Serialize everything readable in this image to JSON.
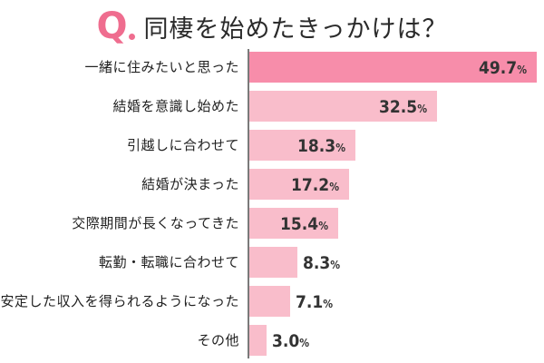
{
  "header": {
    "q_mark": "Q",
    "title": "同棲を始めたきっかけは？"
  },
  "colors": {
    "accent": "#ef6d8f",
    "bar_highlight": "#f78daa",
    "bar_default": "#f9bdcb",
    "axis": "#7a7a7a"
  },
  "chart_data": {
    "type": "bar",
    "orientation": "horizontal",
    "title": "Q. 同棲を始めたきっかけは？",
    "xlabel": "",
    "ylabel": "",
    "unit": "%",
    "grid": false,
    "legend": null,
    "categories": [
      "一緒に住みたいと思った",
      "結婚を意識し始めた",
      "引越しに合わせて",
      "結婚が決まった",
      "交際期間が長くなってきた",
      "転勤・転職に合わせて",
      "安定した収入を得られるようになった",
      "その他"
    ],
    "values": [
      49.7,
      32.5,
      18.3,
      17.2,
      15.4,
      8.3,
      7.1,
      3.0
    ],
    "value_labels": [
      "49.7",
      "32.5",
      "18.3",
      "17.2",
      "15.4",
      "8.3",
      "7.1",
      "3.0"
    ],
    "highlighted_index": 0,
    "xlim": [
      0,
      50
    ]
  }
}
